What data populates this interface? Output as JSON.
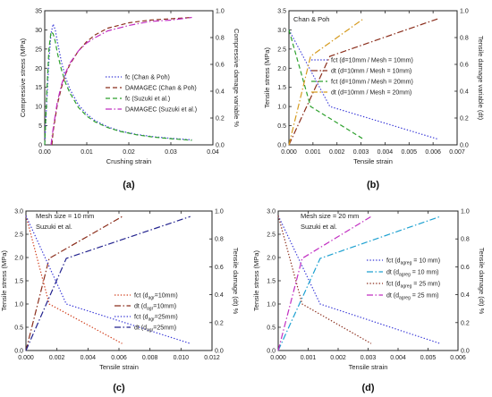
{
  "chart_data": [
    {
      "type": "line",
      "panel_label": "(a)",
      "xlabel": "Crushing strain",
      "ylabel": "Compressive stress (MPa)",
      "y2label": "Compressive damage variable %",
      "xlim": [
        0,
        0.04
      ],
      "ylim": [
        0,
        35
      ],
      "y2lim": [
        0,
        1.0
      ],
      "xticks": [
        "0.00",
        "0.01",
        "0.02",
        "0.03",
        "0.04"
      ],
      "yticks": [
        "0",
        "5",
        "10",
        "15",
        "20",
        "25",
        "30",
        "35"
      ],
      "y2ticks": [
        "0.0",
        "0.2",
        "0.4",
        "0.6",
        "0.8",
        "1.0"
      ],
      "annotations": [],
      "legend_position": "middle-right",
      "series": [
        {
          "name": "fc (Chan & Poh)",
          "axis": "left",
          "style": "dot",
          "color": "#3a3ad8",
          "x": [
            0,
            0.0005,
            0.001,
            0.0015,
            0.002,
            0.0025,
            0.003,
            0.004,
            0.005,
            0.006,
            0.008,
            0.01,
            0.012,
            0.015,
            0.018,
            0.022,
            0.026,
            0.03,
            0.035
          ],
          "y": [
            0,
            12,
            22,
            29,
            31.5,
            30,
            27,
            21.5,
            17.5,
            14.5,
            10.5,
            8,
            6.3,
            4.7,
            3.6,
            2.7,
            2.1,
            1.7,
            1.3
          ]
        },
        {
          "name": "DAMAGEC (Chan & Poh)",
          "axis": "right",
          "style": "dash",
          "color": "#8b2e1c",
          "x": [
            0.0017,
            0.002,
            0.003,
            0.004,
            0.005,
            0.006,
            0.008,
            0.01,
            0.012,
            0.015,
            0.02,
            0.025,
            0.03,
            0.035
          ],
          "y": [
            0,
            0.1,
            0.3,
            0.43,
            0.53,
            0.6,
            0.7,
            0.77,
            0.82,
            0.87,
            0.91,
            0.93,
            0.94,
            0.95
          ]
        },
        {
          "name": "fc (Suzuki et al.)",
          "axis": "left",
          "style": "dash",
          "color": "#2ea12e",
          "x": [
            0,
            0.0005,
            0.001,
            0.0015,
            0.002,
            0.0025,
            0.003,
            0.004,
            0.005,
            0.006,
            0.008,
            0.01,
            0.012,
            0.015,
            0.018,
            0.022,
            0.026,
            0.03,
            0.035
          ],
          "y": [
            0,
            14,
            25,
            29.5,
            29,
            27,
            24,
            19.5,
            16,
            13.5,
            9.8,
            7.5,
            6,
            4.5,
            3.5,
            2.6,
            2,
            1.6,
            1.2
          ]
        },
        {
          "name": "DAMAGEC (Suzuki et al.)",
          "axis": "right",
          "style": "dashdot",
          "color": "#c12ec1",
          "x": [
            0.0015,
            0.002,
            0.003,
            0.004,
            0.005,
            0.006,
            0.008,
            0.01,
            0.012,
            0.015,
            0.02,
            0.025,
            0.03,
            0.035
          ],
          "y": [
            0,
            0.12,
            0.32,
            0.45,
            0.54,
            0.61,
            0.7,
            0.76,
            0.8,
            0.85,
            0.89,
            0.92,
            0.93,
            0.95
          ]
        }
      ]
    },
    {
      "type": "line",
      "panel_label": "(b)",
      "xlabel": "Tensile strain",
      "ylabel": "Tensile stress (MPa)",
      "y2label": "Tensile damage variable (dt)",
      "xlim": [
        0,
        0.007
      ],
      "ylim": [
        0,
        3.5
      ],
      "y2lim": [
        0,
        1.0
      ],
      "xticks": [
        "0.000",
        "0.001",
        "0.002",
        "0.003",
        "0.004",
        "0.005",
        "0.006",
        "0.007"
      ],
      "yticks": [
        "0.0",
        "0.5",
        "1.0",
        "1.5",
        "2.0",
        "2.5",
        "3.0",
        "3.5"
      ],
      "y2ticks": [
        "0.0",
        "0.2",
        "0.4",
        "0.6",
        "0.8",
        "1.0"
      ],
      "annotations": [
        "Chan & Poh"
      ],
      "legend_position": "middle-right",
      "series": [
        {
          "name": "fct (d=10mm / Mesh = 10mm)",
          "axis": "left",
          "style": "dot",
          "color": "#3a3ad8",
          "x": [
            0,
            0.0017,
            0.0062
          ],
          "y": [
            3.0,
            1.0,
            0.15
          ]
        },
        {
          "name": "dt (d=10mm / Mesh = 10mm)",
          "axis": "right",
          "style": "dashdot",
          "color": "#8b2e1c",
          "x": [
            0,
            0.0017,
            0.0062
          ],
          "y": [
            0,
            0.66,
            0.94
          ]
        },
        {
          "name": "fct (d=10mm / Mesh = 20mm)",
          "axis": "left",
          "style": "dash",
          "color": "#2ea12e",
          "x": [
            0,
            0.0009,
            0.0031
          ],
          "y": [
            3.0,
            1.0,
            0.15
          ]
        },
        {
          "name": "dt (d=10mm / Mesh = 20mm)",
          "axis": "right",
          "style": "dashdot",
          "color": "#d59a1e",
          "x": [
            0,
            0.0009,
            0.0031
          ],
          "y": [
            0,
            0.66,
            0.94
          ]
        }
      ]
    },
    {
      "type": "line",
      "panel_label": "(c)",
      "xlabel": "Tensile strain",
      "ylabel": "Tensile stress (MPa)",
      "y2label": "Tensile damage (dt) %",
      "xlim": [
        0,
        0.012
      ],
      "ylim": [
        0,
        3.0
      ],
      "y2lim": [
        0,
        1.0
      ],
      "xticks": [
        "0.000",
        "0.002",
        "0.004",
        "0.006",
        "0.008",
        "0.010",
        "0.012"
      ],
      "yticks": [
        "0.0",
        "0.5",
        "1.0",
        "1.5",
        "2.0",
        "2.5",
        "3.0"
      ],
      "y2ticks": [
        "0.0",
        "0.2",
        "0.4",
        "0.6",
        "0.8",
        "1.0"
      ],
      "annotations": [
        "Mesh size = 10 mm",
        "Suzuki et al."
      ],
      "legend_position": "bottom-right",
      "series": [
        {
          "name": "fct (dagr=10mm)",
          "name_main": "fct (d",
          "name_sub": "agr",
          "name_tail": "=10mm)",
          "axis": "left",
          "style": "dot",
          "color": "#d1401e",
          "x": [
            0,
            0.0015,
            0.0062
          ],
          "y": [
            2.9,
            1.0,
            0.15
          ]
        },
        {
          "name": "dt (dagr=10mm)",
          "name_main": "dt (d",
          "name_sub": "agr",
          "name_tail": "=10mm)",
          "axis": "right",
          "style": "dashdot",
          "color": "#8b2e1c",
          "x": [
            0,
            0.0015,
            0.0062
          ],
          "y": [
            0,
            0.66,
            0.96
          ]
        },
        {
          "name": "fct (dagr=25mm)",
          "name_main": "fct (d",
          "name_sub": "agr",
          "name_tail": "=25mm)",
          "axis": "left",
          "style": "dot",
          "color": "#3a3ad8",
          "x": [
            0,
            0.0026,
            0.0106
          ],
          "y": [
            2.9,
            1.0,
            0.15
          ]
        },
        {
          "name": "dt (dagr=25mm)",
          "name_main": "dt (d",
          "name_sub": "agr",
          "name_tail": "=25mm)",
          "axis": "right",
          "style": "dashdot",
          "color": "#22228e",
          "x": [
            0,
            0.0026,
            0.0106
          ],
          "y": [
            0,
            0.66,
            0.96
          ]
        }
      ]
    },
    {
      "type": "line",
      "panel_label": "(d)",
      "xlabel": "Tensile strain",
      "ylabel": "Tensile stress (MPa)",
      "y2label": "Tensile damage (dt) %",
      "xlim": [
        0,
        0.006
      ],
      "ylim": [
        0,
        3.0
      ],
      "y2lim": [
        0,
        1.0
      ],
      "xticks": [
        "0.000",
        "0.001",
        "0.002",
        "0.003",
        "0.004",
        "0.005",
        "0.006"
      ],
      "yticks": [
        "0.0",
        "0.5",
        "1.0",
        "1.5",
        "2.0",
        "2.5",
        "3.0"
      ],
      "y2ticks": [
        "0.0",
        "0.2",
        "0.4",
        "0.6",
        "0.8",
        "1.0"
      ],
      "annotations": [
        "Mesh size = 20 mm",
        "Suzuki et al."
      ],
      "legend_position": "middle-right",
      "series": [
        {
          "name": "fct (dagreg = 10 mm)",
          "name_main": "fct (d",
          "name_sub": "agreg",
          "name_tail": " = 10 mm)",
          "axis": "left",
          "style": "dot",
          "color": "#3a3ad8",
          "x": [
            0,
            0.0014,
            0.0054
          ],
          "y": [
            2.9,
            1.0,
            0.15
          ]
        },
        {
          "name": "dt (dagreg = 10 mm)",
          "name_main": "dt (d",
          "name_sub": "agreg",
          "name_tail": " = 10 mm)",
          "axis": "right",
          "style": "dashdot",
          "color": "#1ea1d1",
          "x": [
            0,
            0.0014,
            0.0054
          ],
          "y": [
            0,
            0.66,
            0.96
          ]
        },
        {
          "name": "fct (dagreg = 25 mm)",
          "name_main": "fct (d",
          "name_sub": "agreg",
          "name_tail": " = 25 mm)",
          "axis": "left",
          "style": "dot",
          "color": "#8b2e1c",
          "x": [
            0,
            0.0008,
            0.0031
          ],
          "y": [
            2.9,
            1.0,
            0.15
          ]
        },
        {
          "name": "dt (dagreg = 25 mm)",
          "name_main": "dt (d",
          "name_sub": "agreg",
          "name_tail": " = 25 mm)",
          "axis": "right",
          "style": "dashdot",
          "color": "#c12ec1",
          "x": [
            0,
            0.0008,
            0.0031
          ],
          "y": [
            0,
            0.66,
            0.96
          ]
        }
      ]
    }
  ]
}
